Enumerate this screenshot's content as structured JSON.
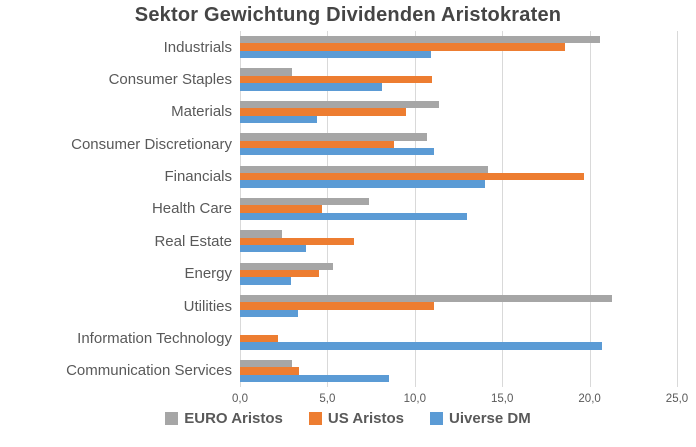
{
  "title": "Sektor Gewichtung Dividenden Aristokraten",
  "colors": {
    "background": "#FFFFFF",
    "title_text": "#454545",
    "label_text": "#595959",
    "gridline": "#D9D9D9",
    "series_gray": "#A6A6A6",
    "series_orange": "#ED7D31",
    "series_blue": "#5B9BD5"
  },
  "chart_data": {
    "type": "bar",
    "orientation": "horizontal",
    "title": "Sektor Gewichtung Dividenden Aristokraten",
    "categories": [
      "Industrials",
      "Consumer Staples",
      "Materials",
      "Consumer Discretionary",
      "Financials",
      "Health Care",
      "Real Estate",
      "Energy",
      "Utilities",
      "Information Technology",
      "Communication Services"
    ],
    "series": [
      {
        "name": "EURO Aristos",
        "color": "#A6A6A6",
        "values": [
          20.6,
          3.0,
          11.4,
          10.7,
          14.2,
          7.4,
          2.4,
          5.3,
          21.3,
          0.0,
          3.0
        ]
      },
      {
        "name": "US Aristos",
        "color": "#ED7D31",
        "values": [
          18.6,
          11.0,
          9.5,
          8.8,
          19.7,
          4.7,
          6.5,
          4.5,
          11.1,
          2.2,
          3.4
        ]
      },
      {
        "name": "Uiverse DM",
        "color": "#5B9BD5",
        "values": [
          10.9,
          8.1,
          4.4,
          11.1,
          14.0,
          13.0,
          3.8,
          2.9,
          3.3,
          20.7,
          8.5
        ]
      }
    ],
    "xlabel": "",
    "ylabel": "",
    "xlim": [
      0,
      25
    ],
    "x_tick_labels": [
      "0,0",
      "5,0",
      "10,0",
      "15,0",
      "20,0",
      "25,0"
    ],
    "x_tick_values": [
      0,
      5,
      10,
      15,
      20,
      25
    ],
    "grid": true,
    "legend_position": "bottom"
  }
}
